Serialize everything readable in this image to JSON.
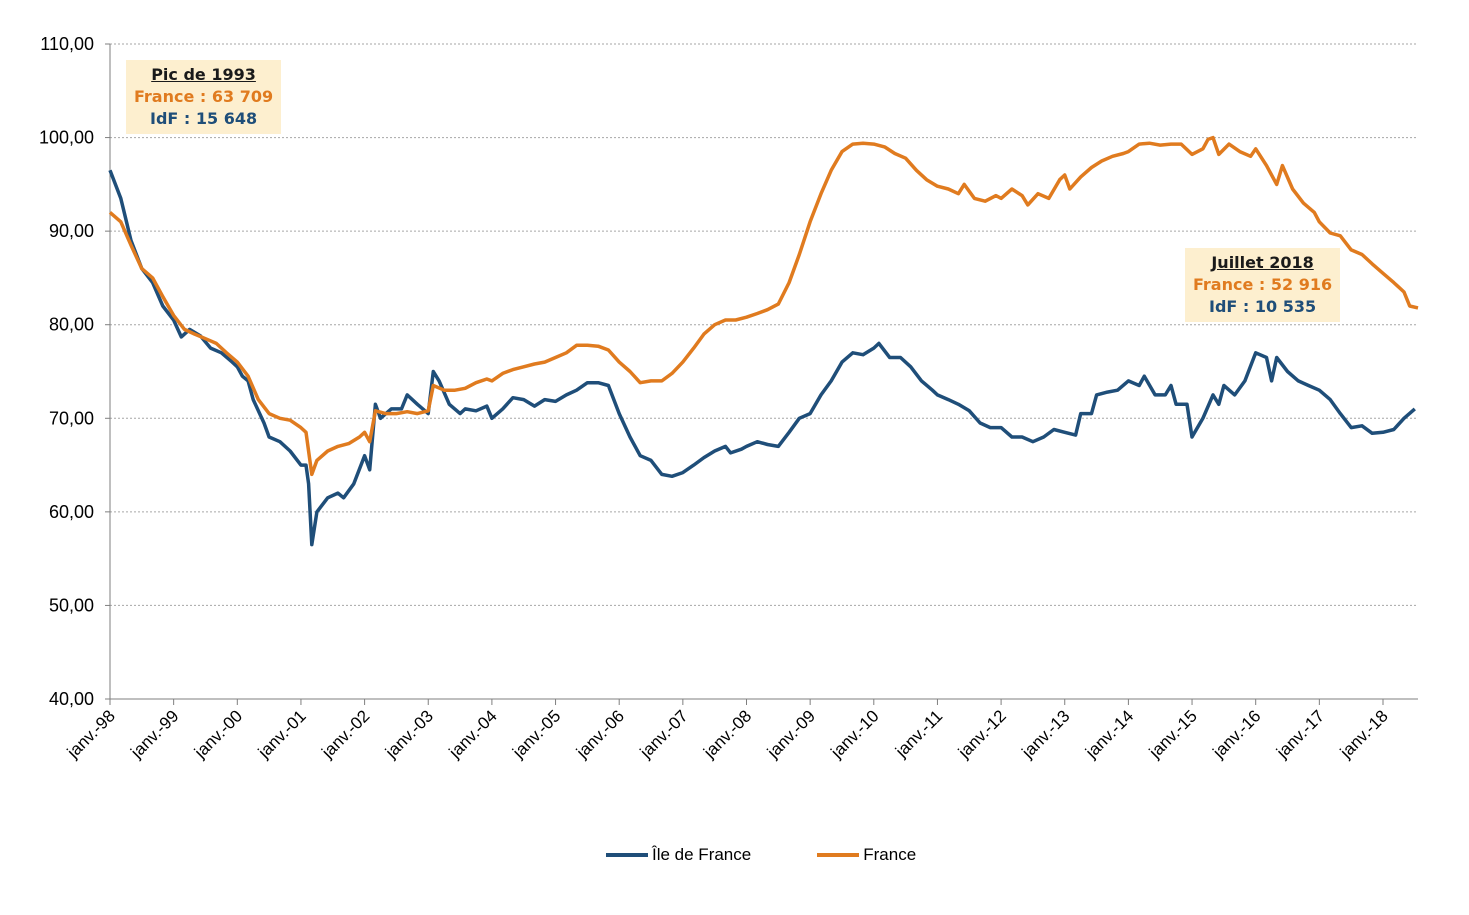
{
  "colors": {
    "idf": "#1f4e79",
    "france": "#e07b1f",
    "grid": "#a6a6a6",
    "annotation_bg": "#fdefcf"
  },
  "annotations": [
    {
      "title": "Pic de 1993",
      "france": "France : 63 709",
      "idf": "IdF : 15 648"
    },
    {
      "title": "Juillet 2018",
      "france": "France : 52 916",
      "idf": "IdF : 10 535"
    }
  ],
  "chart_data": {
    "type": "line",
    "ylim": [
      40,
      110
    ],
    "y_ticks": [
      "40,00",
      "50,00",
      "60,00",
      "70,00",
      "80,00",
      "90,00",
      "100,00",
      "110,00"
    ],
    "x_tick_labels": [
      "janv.-98",
      "janv.-99",
      "janv.-00",
      "janv.-01",
      "janv.-02",
      "janv.-03",
      "janv.-04",
      "janv.-05",
      "janv.-06",
      "janv.-07",
      "janv.-08",
      "janv.-09",
      "janv.-10",
      "janv.-11",
      "janv.-12",
      "janv.-13",
      "janv.-14",
      "janv.-15",
      "janv.-16",
      "janv.-17",
      "janv.-18"
    ],
    "x_range": [
      1998.0,
      2018.55
    ],
    "grid": "horizontal",
    "legend_position": "bottom",
    "series": [
      {
        "name": "Île de France",
        "color": "#1f4e79",
        "points": [
          [
            1998.0,
            96.5
          ],
          [
            1998.17,
            93.5
          ],
          [
            1998.33,
            89
          ],
          [
            1998.5,
            86
          ],
          [
            1998.67,
            84.5
          ],
          [
            1998.83,
            82
          ],
          [
            1999.0,
            80.5
          ],
          [
            1999.12,
            78.7
          ],
          [
            1999.25,
            79.5
          ],
          [
            1999.42,
            78.8
          ],
          [
            1999.58,
            77.5
          ],
          [
            1999.75,
            77
          ],
          [
            1999.92,
            76
          ],
          [
            2000.0,
            75.5
          ],
          [
            2000.08,
            74.5
          ],
          [
            2000.17,
            74
          ],
          [
            2000.25,
            72
          ],
          [
            2000.42,
            69.5
          ],
          [
            2000.5,
            68
          ],
          [
            2000.67,
            67.5
          ],
          [
            2000.83,
            66.5
          ],
          [
            2001.0,
            65
          ],
          [
            2001.08,
            65
          ],
          [
            2001.12,
            63
          ],
          [
            2001.17,
            56.5
          ],
          [
            2001.25,
            60
          ],
          [
            2001.42,
            61.5
          ],
          [
            2001.58,
            62
          ],
          [
            2001.67,
            61.5
          ],
          [
            2001.83,
            63
          ],
          [
            2002.0,
            66
          ],
          [
            2002.08,
            64.5
          ],
          [
            2002.17,
            71.5
          ],
          [
            2002.25,
            70
          ],
          [
            2002.42,
            71
          ],
          [
            2002.58,
            71
          ],
          [
            2002.67,
            72.5
          ],
          [
            2002.83,
            71.5
          ],
          [
            2003.0,
            70.5
          ],
          [
            2003.08,
            75
          ],
          [
            2003.17,
            74
          ],
          [
            2003.33,
            71.5
          ],
          [
            2003.5,
            70.5
          ],
          [
            2003.58,
            71
          ],
          [
            2003.75,
            70.8
          ],
          [
            2003.92,
            71.3
          ],
          [
            2004.0,
            70
          ],
          [
            2004.17,
            71
          ],
          [
            2004.33,
            72.2
          ],
          [
            2004.5,
            72
          ],
          [
            2004.67,
            71.3
          ],
          [
            2004.83,
            72
          ],
          [
            2005.0,
            71.8
          ],
          [
            2005.17,
            72.5
          ],
          [
            2005.33,
            73
          ],
          [
            2005.5,
            73.8
          ],
          [
            2005.67,
            73.8
          ],
          [
            2005.83,
            73.5
          ],
          [
            2006.0,
            70.5
          ],
          [
            2006.17,
            68
          ],
          [
            2006.33,
            66
          ],
          [
            2006.5,
            65.5
          ],
          [
            2006.67,
            64
          ],
          [
            2006.83,
            63.8
          ],
          [
            2007.0,
            64.2
          ],
          [
            2007.17,
            65
          ],
          [
            2007.33,
            65.8
          ],
          [
            2007.5,
            66.5
          ],
          [
            2007.67,
            67
          ],
          [
            2007.75,
            66.3
          ],
          [
            2007.92,
            66.7
          ],
          [
            2008.0,
            67
          ],
          [
            2008.17,
            67.5
          ],
          [
            2008.33,
            67.2
          ],
          [
            2008.5,
            67
          ],
          [
            2008.67,
            68.5
          ],
          [
            2008.83,
            70
          ],
          [
            2009.0,
            70.5
          ],
          [
            2009.17,
            72.5
          ],
          [
            2009.33,
            74
          ],
          [
            2009.5,
            76
          ],
          [
            2009.67,
            77
          ],
          [
            2009.83,
            76.8
          ],
          [
            2010.0,
            77.5
          ],
          [
            2010.08,
            78
          ],
          [
            2010.25,
            76.5
          ],
          [
            2010.42,
            76.5
          ],
          [
            2010.58,
            75.5
          ],
          [
            2010.75,
            74
          ],
          [
            2010.92,
            73
          ],
          [
            2011.0,
            72.5
          ],
          [
            2011.17,
            72
          ],
          [
            2011.33,
            71.5
          ],
          [
            2011.5,
            70.8
          ],
          [
            2011.67,
            69.5
          ],
          [
            2011.83,
            69
          ],
          [
            2012.0,
            69
          ],
          [
            2012.17,
            68
          ],
          [
            2012.33,
            68
          ],
          [
            2012.5,
            67.5
          ],
          [
            2012.67,
            68
          ],
          [
            2012.83,
            68.8
          ],
          [
            2013.0,
            68.5
          ],
          [
            2013.17,
            68.2
          ],
          [
            2013.25,
            70.5
          ],
          [
            2013.42,
            70.5
          ],
          [
            2013.5,
            72.5
          ],
          [
            2013.67,
            72.8
          ],
          [
            2013.83,
            73
          ],
          [
            2014.0,
            74
          ],
          [
            2014.17,
            73.5
          ],
          [
            2014.25,
            74.5
          ],
          [
            2014.42,
            72.5
          ],
          [
            2014.58,
            72.5
          ],
          [
            2014.67,
            73.5
          ],
          [
            2014.75,
            71.5
          ],
          [
            2014.92,
            71.5
          ],
          [
            2015.0,
            68
          ],
          [
            2015.17,
            70
          ],
          [
            2015.33,
            72.5
          ],
          [
            2015.42,
            71.5
          ],
          [
            2015.5,
            73.5
          ],
          [
            2015.67,
            72.5
          ],
          [
            2015.83,
            74
          ],
          [
            2016.0,
            77
          ],
          [
            2016.17,
            76.5
          ],
          [
            2016.25,
            74
          ],
          [
            2016.33,
            76.5
          ],
          [
            2016.5,
            75
          ],
          [
            2016.67,
            74
          ],
          [
            2016.83,
            73.5
          ],
          [
            2017.0,
            73
          ],
          [
            2017.17,
            72
          ],
          [
            2017.33,
            70.5
          ],
          [
            2017.5,
            69
          ],
          [
            2017.67,
            69.2
          ],
          [
            2017.83,
            68.4
          ],
          [
            2018.0,
            68.5
          ],
          [
            2018.17,
            68.8
          ],
          [
            2018.33,
            70
          ],
          [
            2018.5,
            71
          ]
        ]
      },
      {
        "name": "France",
        "color": "#e07b1f",
        "points": [
          [
            1998.0,
            92
          ],
          [
            1998.17,
            91
          ],
          [
            1998.33,
            88.5
          ],
          [
            1998.5,
            86
          ],
          [
            1998.67,
            85
          ],
          [
            1998.83,
            83
          ],
          [
            1999.0,
            81
          ],
          [
            1999.17,
            79.5
          ],
          [
            1999.33,
            79
          ],
          [
            1999.5,
            78.5
          ],
          [
            1999.67,
            78
          ],
          [
            1999.83,
            77
          ],
          [
            2000.0,
            76
          ],
          [
            2000.17,
            74.5
          ],
          [
            2000.33,
            72
          ],
          [
            2000.5,
            70.5
          ],
          [
            2000.67,
            70
          ],
          [
            2000.83,
            69.8
          ],
          [
            2001.0,
            69
          ],
          [
            2001.08,
            68.5
          ],
          [
            2001.17,
            64
          ],
          [
            2001.25,
            65.5
          ],
          [
            2001.42,
            66.5
          ],
          [
            2001.58,
            67
          ],
          [
            2001.75,
            67.3
          ],
          [
            2001.92,
            68
          ],
          [
            2002.0,
            68.5
          ],
          [
            2002.08,
            67.5
          ],
          [
            2002.17,
            70.8
          ],
          [
            2002.33,
            70.5
          ],
          [
            2002.5,
            70.5
          ],
          [
            2002.67,
            70.7
          ],
          [
            2002.83,
            70.5
          ],
          [
            2003.0,
            70.8
          ],
          [
            2003.08,
            73.5
          ],
          [
            2003.25,
            73
          ],
          [
            2003.42,
            73
          ],
          [
            2003.58,
            73.2
          ],
          [
            2003.75,
            73.8
          ],
          [
            2003.92,
            74.2
          ],
          [
            2004.0,
            74
          ],
          [
            2004.17,
            74.8
          ],
          [
            2004.33,
            75.2
          ],
          [
            2004.5,
            75.5
          ],
          [
            2004.67,
            75.8
          ],
          [
            2004.83,
            76
          ],
          [
            2005.0,
            76.5
          ],
          [
            2005.17,
            77
          ],
          [
            2005.33,
            77.8
          ],
          [
            2005.5,
            77.8
          ],
          [
            2005.67,
            77.7
          ],
          [
            2005.83,
            77.3
          ],
          [
            2006.0,
            76
          ],
          [
            2006.17,
            75
          ],
          [
            2006.33,
            73.8
          ],
          [
            2006.5,
            74
          ],
          [
            2006.67,
            74
          ],
          [
            2006.83,
            74.8
          ],
          [
            2007.0,
            76
          ],
          [
            2007.17,
            77.5
          ],
          [
            2007.33,
            79
          ],
          [
            2007.5,
            80
          ],
          [
            2007.67,
            80.5
          ],
          [
            2007.83,
            80.5
          ],
          [
            2008.0,
            80.8
          ],
          [
            2008.17,
            81.2
          ],
          [
            2008.33,
            81.6
          ],
          [
            2008.5,
            82.2
          ],
          [
            2008.67,
            84.5
          ],
          [
            2008.83,
            87.5
          ],
          [
            2009.0,
            91
          ],
          [
            2009.17,
            94
          ],
          [
            2009.33,
            96.5
          ],
          [
            2009.5,
            98.5
          ],
          [
            2009.67,
            99.3
          ],
          [
            2009.83,
            99.4
          ],
          [
            2010.0,
            99.3
          ],
          [
            2010.17,
            99
          ],
          [
            2010.33,
            98.3
          ],
          [
            2010.5,
            97.8
          ],
          [
            2010.67,
            96.5
          ],
          [
            2010.83,
            95.5
          ],
          [
            2011.0,
            94.8
          ],
          [
            2011.17,
            94.5
          ],
          [
            2011.33,
            94
          ],
          [
            2011.42,
            95
          ],
          [
            2011.58,
            93.5
          ],
          [
            2011.75,
            93.2
          ],
          [
            2011.92,
            93.8
          ],
          [
            2012.0,
            93.5
          ],
          [
            2012.17,
            94.5
          ],
          [
            2012.33,
            93.8
          ],
          [
            2012.42,
            92.8
          ],
          [
            2012.58,
            94
          ],
          [
            2012.75,
            93.5
          ],
          [
            2012.92,
            95.5
          ],
          [
            2013.0,
            96
          ],
          [
            2013.08,
            94.5
          ],
          [
            2013.25,
            95.8
          ],
          [
            2013.42,
            96.8
          ],
          [
            2013.58,
            97.5
          ],
          [
            2013.75,
            98
          ],
          [
            2013.92,
            98.3
          ],
          [
            2014.0,
            98.5
          ],
          [
            2014.17,
            99.3
          ],
          [
            2014.33,
            99.4
          ],
          [
            2014.5,
            99.2
          ],
          [
            2014.67,
            99.3
          ],
          [
            2014.83,
            99.3
          ],
          [
            2015.0,
            98.2
          ],
          [
            2015.17,
            98.8
          ],
          [
            2015.25,
            99.8
          ],
          [
            2015.33,
            100
          ],
          [
            2015.42,
            98.2
          ],
          [
            2015.58,
            99.3
          ],
          [
            2015.75,
            98.5
          ],
          [
            2015.92,
            98
          ],
          [
            2016.0,
            98.8
          ],
          [
            2016.17,
            97
          ],
          [
            2016.33,
            95
          ],
          [
            2016.42,
            97
          ],
          [
            2016.58,
            94.5
          ],
          [
            2016.75,
            93
          ],
          [
            2016.92,
            92
          ],
          [
            2017.0,
            91
          ],
          [
            2017.17,
            89.8
          ],
          [
            2017.33,
            89.5
          ],
          [
            2017.5,
            88
          ],
          [
            2017.67,
            87.5
          ],
          [
            2017.83,
            86.5
          ],
          [
            2018.0,
            85.5
          ],
          [
            2018.17,
            84.5
          ],
          [
            2018.33,
            83.5
          ],
          [
            2018.42,
            82
          ],
          [
            2018.55,
            81.8
          ]
        ]
      }
    ]
  }
}
